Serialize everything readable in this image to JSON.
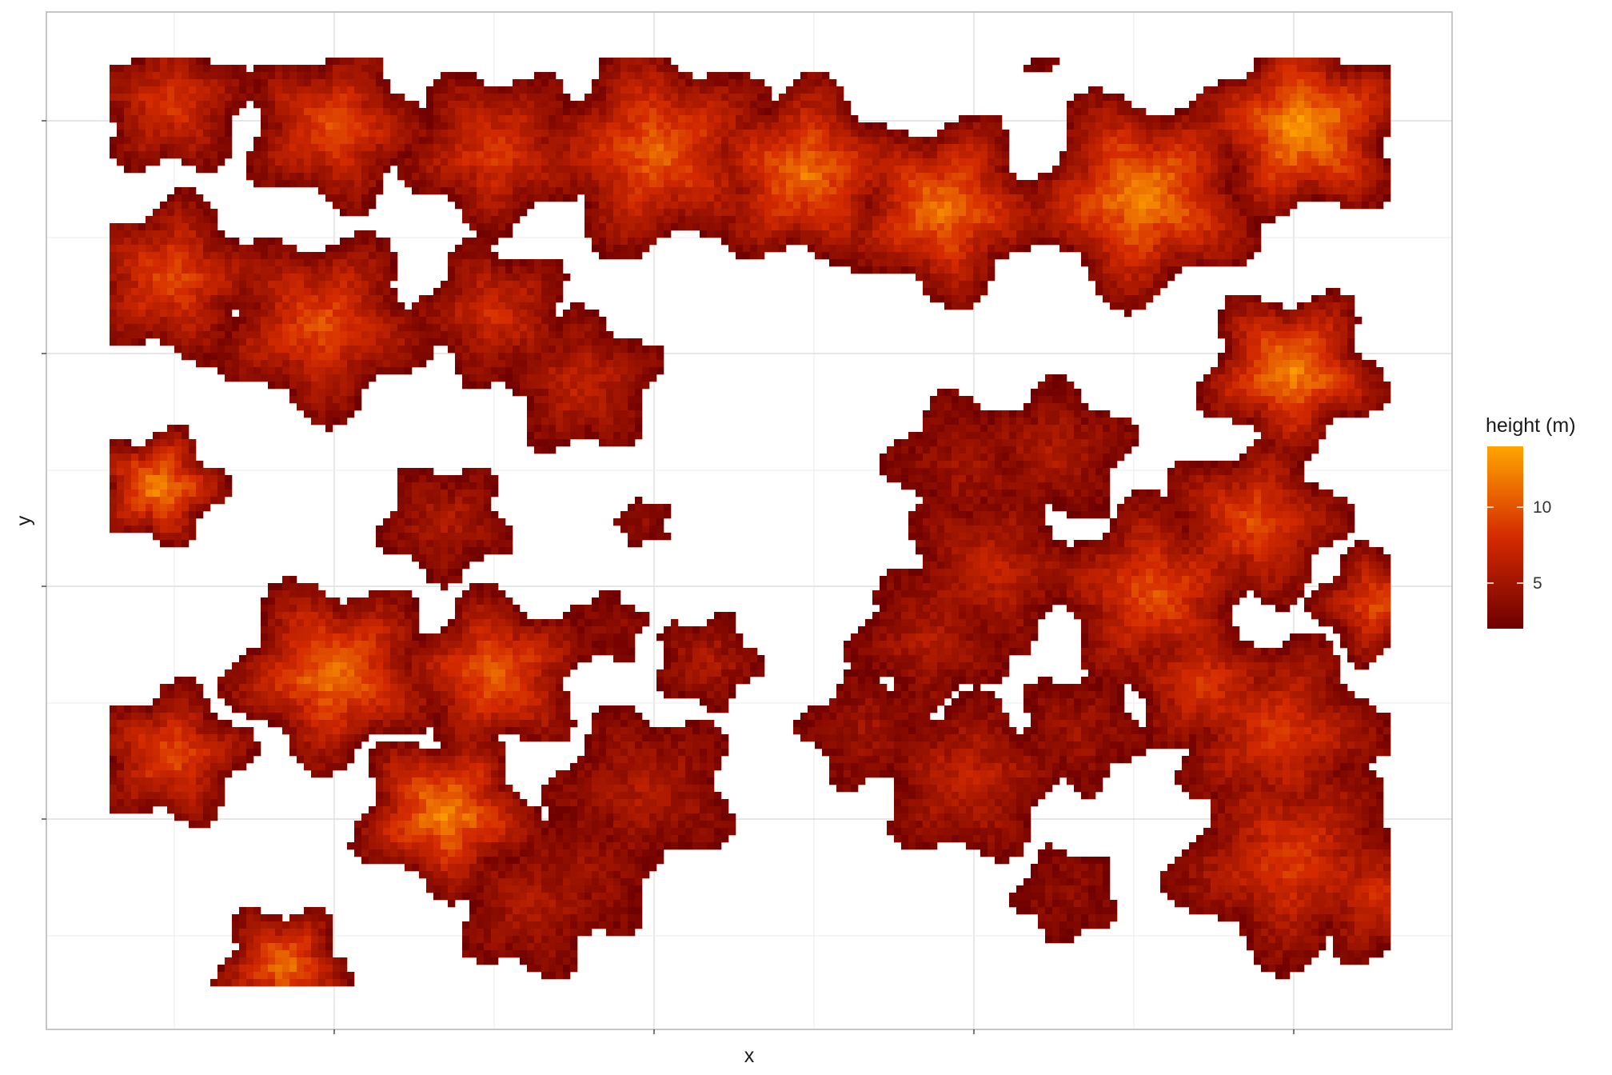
{
  "chart_data": {
    "type": "heatmap",
    "title": "",
    "xlabel": "x",
    "ylabel": "y",
    "x_tick_labels": [],
    "y_tick_labels": [],
    "grid": true,
    "legend": {
      "title": "height (m)",
      "placement": "right",
      "ticks": [
        5,
        10
      ],
      "tick_labels": [
        "5",
        "10"
      ],
      "range": [
        2,
        14
      ],
      "colors": {
        "low": "#6e0000",
        "mid": "#d42a00",
        "high": "#ffa500"
      }
    },
    "z_unit": "m",
    "domain": {
      "x": [
        0,
        100
      ],
      "y": [
        0,
        80
      ]
    },
    "crowns": [
      {
        "x": 5,
        "y": 76,
        "r": 6,
        "peak": 9
      },
      {
        "x": 18,
        "y": 74,
        "r": 7,
        "peak": 10
      },
      {
        "x": 31,
        "y": 72,
        "r": 7,
        "peak": 9
      },
      {
        "x": 44,
        "y": 72,
        "r": 9,
        "peak": 11
      },
      {
        "x": 56,
        "y": 70,
        "r": 8,
        "peak": 12
      },
      {
        "x": 67,
        "y": 67,
        "r": 8,
        "peak": 12
      },
      {
        "x": 83,
        "y": 68,
        "r": 9,
        "peak": 13
      },
      {
        "x": 96,
        "y": 74,
        "r": 8,
        "peak": 14
      },
      {
        "x": 5,
        "y": 61,
        "r": 7,
        "peak": 10
      },
      {
        "x": 17,
        "y": 57,
        "r": 8,
        "peak": 10
      },
      {
        "x": 31,
        "y": 58,
        "r": 6,
        "peak": 8
      },
      {
        "x": 38,
        "y": 52,
        "r": 6,
        "peak": 7
      },
      {
        "x": 4,
        "y": 43,
        "r": 5,
        "peak": 13
      },
      {
        "x": 27,
        "y": 40,
        "r": 5,
        "peak": 6
      },
      {
        "x": 43,
        "y": 40,
        "r": 2,
        "peak": 4
      },
      {
        "x": 40,
        "y": 31,
        "r": 3,
        "peak": 4
      },
      {
        "x": 48,
        "y": 28,
        "r": 4,
        "peak": 6
      },
      {
        "x": 18,
        "y": 27,
        "r": 8,
        "peak": 12
      },
      {
        "x": 31,
        "y": 27,
        "r": 7,
        "peak": 11
      },
      {
        "x": 5,
        "y": 20,
        "r": 6,
        "peak": 10
      },
      {
        "x": 27,
        "y": 15,
        "r": 7,
        "peak": 13
      },
      {
        "x": 43,
        "y": 17,
        "r": 7,
        "peak": 6
      },
      {
        "x": 38,
        "y": 10,
        "r": 6,
        "peak": 5
      },
      {
        "x": 34,
        "y": 7,
        "r": 6,
        "peak": 6
      },
      {
        "x": 14,
        "y": 2,
        "r": 5,
        "peak": 12
      },
      {
        "x": 69,
        "y": 45,
        "r": 6,
        "peak": 5
      },
      {
        "x": 76,
        "y": 46,
        "r": 6,
        "peak": 6
      },
      {
        "x": 71,
        "y": 36,
        "r": 7,
        "peak": 7
      },
      {
        "x": 66,
        "y": 30,
        "r": 6,
        "peak": 6
      },
      {
        "x": 61,
        "y": 22,
        "r": 5,
        "peak": 5
      },
      {
        "x": 69,
        "y": 18,
        "r": 7,
        "peak": 7
      },
      {
        "x": 78,
        "y": 22,
        "r": 5,
        "peak": 5
      },
      {
        "x": 77,
        "y": 8,
        "r": 4,
        "peak": 4
      },
      {
        "x": 84,
        "y": 34,
        "r": 8,
        "peak": 10
      },
      {
        "x": 92,
        "y": 40,
        "r": 7,
        "peak": 10
      },
      {
        "x": 95,
        "y": 53,
        "r": 7,
        "peak": 13
      },
      {
        "x": 102,
        "y": 33,
        "r": 5,
        "peak": 10
      },
      {
        "x": 88,
        "y": 26,
        "r": 6,
        "peak": 9
      },
      {
        "x": 94,
        "y": 22,
        "r": 8,
        "peak": 9
      },
      {
        "x": 95,
        "y": 11,
        "r": 9,
        "peak": 9
      },
      {
        "x": 102,
        "y": 8,
        "r": 6,
        "peak": 8
      },
      {
        "x": 75,
        "y": 80,
        "r": 1.5,
        "peak": 3
      }
    ]
  }
}
